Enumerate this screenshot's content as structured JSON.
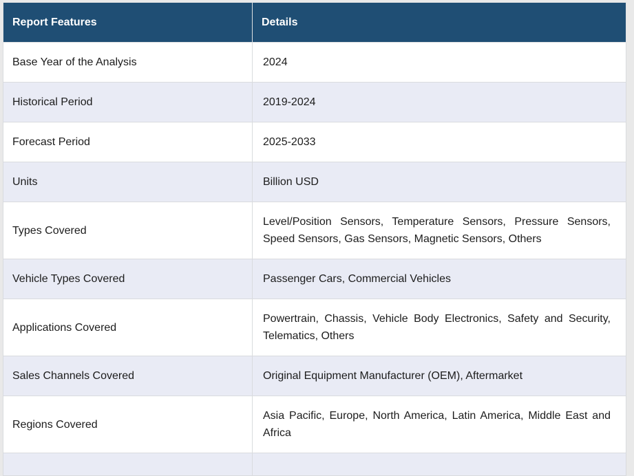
{
  "page": {
    "background_color": "#e9e9e9"
  },
  "table": {
    "header_bg_color": "#1f4e74",
    "header_text_color": "#ffffff",
    "row_alt_bg_color": "#e9ebf5",
    "body_text_color": "#1c1c1c",
    "columns": [
      {
        "label": "Report Features"
      },
      {
        "label": "Details"
      }
    ],
    "rows": [
      {
        "feature": "Base Year of the Analysis",
        "details": "2024"
      },
      {
        "feature": "Historical Period",
        "details": "2019-2024"
      },
      {
        "feature": "Forecast Period",
        "details": "2025-2033"
      },
      {
        "feature": "Units",
        "details": "Billion USD"
      },
      {
        "feature": "Types Covered",
        "details": "Level/Position Sensors, Temperature Sensors, Pressure Sensors, Speed Sensors, Gas Sensors, Magnetic Sensors, Others"
      },
      {
        "feature": "Vehicle Types Covered",
        "details": "Passenger Cars, Commercial Vehicles"
      },
      {
        "feature": "Applications Covered",
        "details": "Powertrain, Chassis, Vehicle Body Electronics, Safety and Security, Telematics, Others"
      },
      {
        "feature": "Sales Channels Covered",
        "details": "Original Equipment Manufacturer (OEM), Aftermarket"
      },
      {
        "feature": "Regions Covered",
        "details": "Asia Pacific, Europe, North America, Latin America, Middle East and Africa"
      },
      {
        "feature": "",
        "details": ""
      }
    ]
  }
}
